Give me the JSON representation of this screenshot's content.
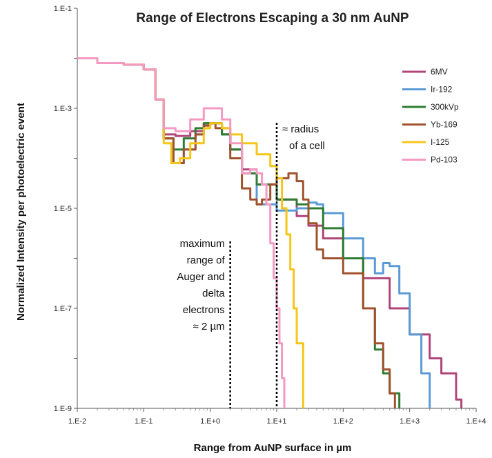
{
  "chart_data": {
    "type": "line",
    "title": "Range of Electrons Escaping a 30 nm AuNP",
    "xlabel": "Range from AuNP surface  in  µm",
    "ylabel": "Normalized Intensity per photoelectric event",
    "x_scale": "log",
    "y_scale": "log",
    "xlim": [
      0.01,
      10000
    ],
    "ylim": [
      1e-09,
      0.1
    ],
    "x_ticks": [
      0.01,
      0.1,
      1,
      10,
      100,
      1000,
      10000
    ],
    "x_tick_labels": [
      "1.E-2",
      "1.E-1",
      "1.E+0",
      "1.E+1",
      "1.E+2",
      "1.E+3",
      "1.E+4"
    ],
    "y_ticks": [
      1e-09,
      1e-07,
      1e-05,
      0.001,
      0.1
    ],
    "y_tick_labels": [
      "1.E-9",
      "1.E-7",
      "1.E-5",
      "1.E-3",
      "1.E-1"
    ],
    "grid": false,
    "legend_position": "top-right",
    "series": [
      {
        "name": "6MV",
        "color": "#b0457a",
        "x": [
          0.01,
          0.02,
          0.05,
          0.1,
          0.15,
          0.2,
          0.3,
          0.5,
          0.8,
          1,
          1.5,
          2,
          3,
          5,
          10,
          20,
          30,
          50,
          100,
          200,
          500,
          1000,
          2000,
          3000,
          5000,
          6000
        ],
        "y": [
          0.01,
          0.008,
          0.0075,
          0.006,
          0.0015,
          0.0003,
          0.00028,
          0.00035,
          0.0005,
          0.0005,
          0.0003,
          0.00015,
          6e-05,
          3e-05,
          1.5e-05,
          7e-06,
          4.5e-06,
          2.5e-06,
          1e-06,
          4e-07,
          1e-07,
          3e-08,
          1e-08,
          5e-09,
          1.5e-09,
          1e-09
        ]
      },
      {
        "name": "Ir-192",
        "color": "#5b9bd5",
        "x": [
          0.01,
          0.02,
          0.05,
          0.1,
          0.15,
          0.2,
          0.28,
          0.4,
          0.6,
          0.8,
          1,
          1.5,
          2,
          3,
          5,
          10,
          20,
          30,
          40,
          50,
          100,
          200,
          300,
          400,
          500,
          700,
          1000,
          1500,
          2000
        ],
        "y": [
          0.01,
          0.008,
          0.0075,
          0.006,
          0.0015,
          0.00025,
          8e-05,
          0.00015,
          0.0003,
          0.00045,
          0.0005,
          0.0003,
          0.00015,
          5e-05,
          1.2e-05,
          9e-06,
          1e-05,
          1.3e-05,
          1.2e-05,
          8e-06,
          2.5e-06,
          1e-06,
          5e-07,
          8e-07,
          7e-07,
          2e-07,
          3e-08,
          5e-09,
          1e-09
        ]
      },
      {
        "name": "300kVp",
        "color": "#2e7d32",
        "x": [
          0.01,
          0.02,
          0.05,
          0.1,
          0.15,
          0.2,
          0.28,
          0.4,
          0.6,
          0.8,
          1,
          1.5,
          2,
          3,
          5,
          10,
          20,
          30,
          50,
          100,
          200,
          300,
          400,
          500,
          700
        ],
        "y": [
          0.01,
          0.008,
          0.0075,
          0.006,
          0.0015,
          0.00025,
          0.00015,
          0.00025,
          0.0004,
          0.0005,
          0.0005,
          0.0003,
          0.00015,
          5e-05,
          3e-05,
          1.5e-05,
          1.2e-05,
          1e-05,
          4e-06,
          1e-06,
          1e-07,
          1.5e-08,
          5e-09,
          2e-09,
          1e-09
        ]
      },
      {
        "name": "Yb-169",
        "color": "#a0522d",
        "x": [
          0.01,
          0.02,
          0.05,
          0.1,
          0.15,
          0.2,
          0.28,
          0.4,
          0.6,
          0.8,
          1,
          1.2,
          2,
          3,
          4,
          5,
          6,
          8,
          10,
          15,
          20,
          25,
          30,
          40,
          50,
          70,
          100,
          200,
          300,
          400,
          500,
          600
        ],
        "y": [
          0.01,
          0.008,
          0.0075,
          0.006,
          0.0015,
          0.00025,
          8e-05,
          0.00015,
          0.0003,
          0.00045,
          0.0005,
          0.0004,
          0.0001,
          2.5e-05,
          1.5e-05,
          1.2e-05,
          1.5e-05,
          3e-05,
          4e-05,
          5e-05,
          3.5e-05,
          1.5e-05,
          5e-06,
          1.5e-06,
          1e-06,
          1e-06,
          5e-07,
          1e-07,
          2e-08,
          6e-09,
          2e-09,
          1e-09
        ]
      },
      {
        "name": "I-125",
        "color": "#f5c518",
        "x": [
          0.01,
          0.02,
          0.05,
          0.1,
          0.15,
          0.2,
          0.26,
          0.35,
          0.5,
          0.8,
          1,
          1.5,
          2,
          3,
          5,
          8,
          10,
          12,
          14,
          16,
          18,
          20,
          25
        ],
        "y": [
          0.01,
          0.008,
          0.0075,
          0.006,
          0.0015,
          0.0002,
          8e-05,
          0.0001,
          0.0002,
          0.0004,
          0.0005,
          0.0004,
          0.0003,
          0.0002,
          0.00012,
          7e-05,
          4e-05,
          1e-05,
          3e-06,
          6e-07,
          1e-07,
          2e-08,
          1e-09
        ]
      },
      {
        "name": "Pd-103",
        "color": "#f49ac2",
        "x": [
          0.01,
          0.02,
          0.05,
          0.1,
          0.15,
          0.2,
          0.3,
          0.5,
          0.8,
          1,
          1.5,
          2,
          3,
          4,
          5,
          6,
          7,
          8,
          9,
          10,
          11,
          12,
          13
        ],
        "y": [
          0.01,
          0.008,
          0.0075,
          0.006,
          0.0015,
          0.0004,
          0.00035,
          0.0006,
          0.001,
          0.001,
          0.0006,
          0.0002,
          5e-05,
          6e-05,
          5e-05,
          3e-05,
          1.2e-05,
          2e-06,
          4e-07,
          1e-07,
          2e-08,
          4e-09,
          1e-09
        ]
      }
    ],
    "annotations": [
      {
        "x": 10,
        "lines": [
          "≈ radius",
          "of a cell"
        ]
      },
      {
        "x": 2,
        "lines": [
          "maximum",
          "range of",
          "Auger and",
          "delta",
          "electrons",
          "≈ 2 µm"
        ]
      }
    ]
  }
}
